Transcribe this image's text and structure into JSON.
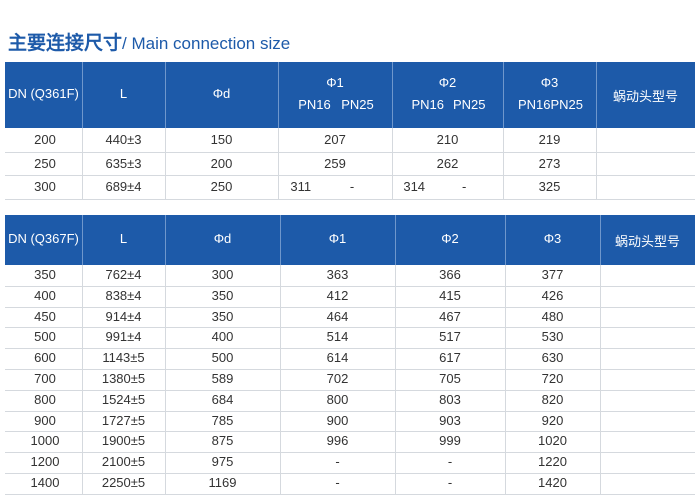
{
  "title": {
    "zh": "主要连接尺寸",
    "en": "/ Main connection size"
  },
  "table1": {
    "header": [
      "DN (Q361F)",
      "L",
      "Φd",
      {
        "label": "Φ1",
        "sub": [
          "PN16",
          "PN25"
        ]
      },
      {
        "label": "Φ2",
        "sub": [
          "PN16",
          "PN25"
        ]
      },
      {
        "label": "Φ3",
        "sub": [
          "PN16",
          "PN25"
        ]
      },
      "蜗动头型号"
    ],
    "rows": [
      [
        "200",
        "440±3",
        "150",
        "207",
        "210",
        "219"
      ],
      [
        "250",
        "635±3",
        "200",
        "259",
        "262",
        "273"
      ],
      [
        "300",
        "689±4",
        "250",
        [
          "311",
          "-"
        ],
        [
          "314",
          "-"
        ],
        "325"
      ]
    ]
  },
  "table2": {
    "header": [
      "DN (Q367F)",
      "L",
      "Φd",
      "Φ1",
      "Φ2",
      "Φ3",
      "蜗动头型号"
    ],
    "rows": [
      [
        "350",
        "762±4",
        "300",
        "363",
        "366",
        "377"
      ],
      [
        "400",
        "838±4",
        "350",
        "412",
        "415",
        "426"
      ],
      [
        "450",
        "914±4",
        "350",
        "464",
        "467",
        "480"
      ],
      [
        "500",
        "991±4",
        "400",
        "514",
        "517",
        "530"
      ],
      [
        "600",
        "1143±5",
        "500",
        "614",
        "617",
        "630"
      ],
      [
        "700",
        "1380±5",
        "589",
        "702",
        "705",
        "720"
      ],
      [
        "800",
        "1524±5",
        "684",
        "800",
        "803",
        "820"
      ],
      [
        "900",
        "1727±5",
        "785",
        "900",
        "903",
        "920"
      ],
      [
        "1000",
        "1900±5",
        "875",
        "996",
        "999",
        "1020"
      ],
      [
        "1200",
        "2100±5",
        "975",
        "-",
        "-",
        "1220"
      ],
      [
        "1400",
        "2250±5",
        "1169",
        "-",
        "-",
        "1420"
      ]
    ]
  }
}
